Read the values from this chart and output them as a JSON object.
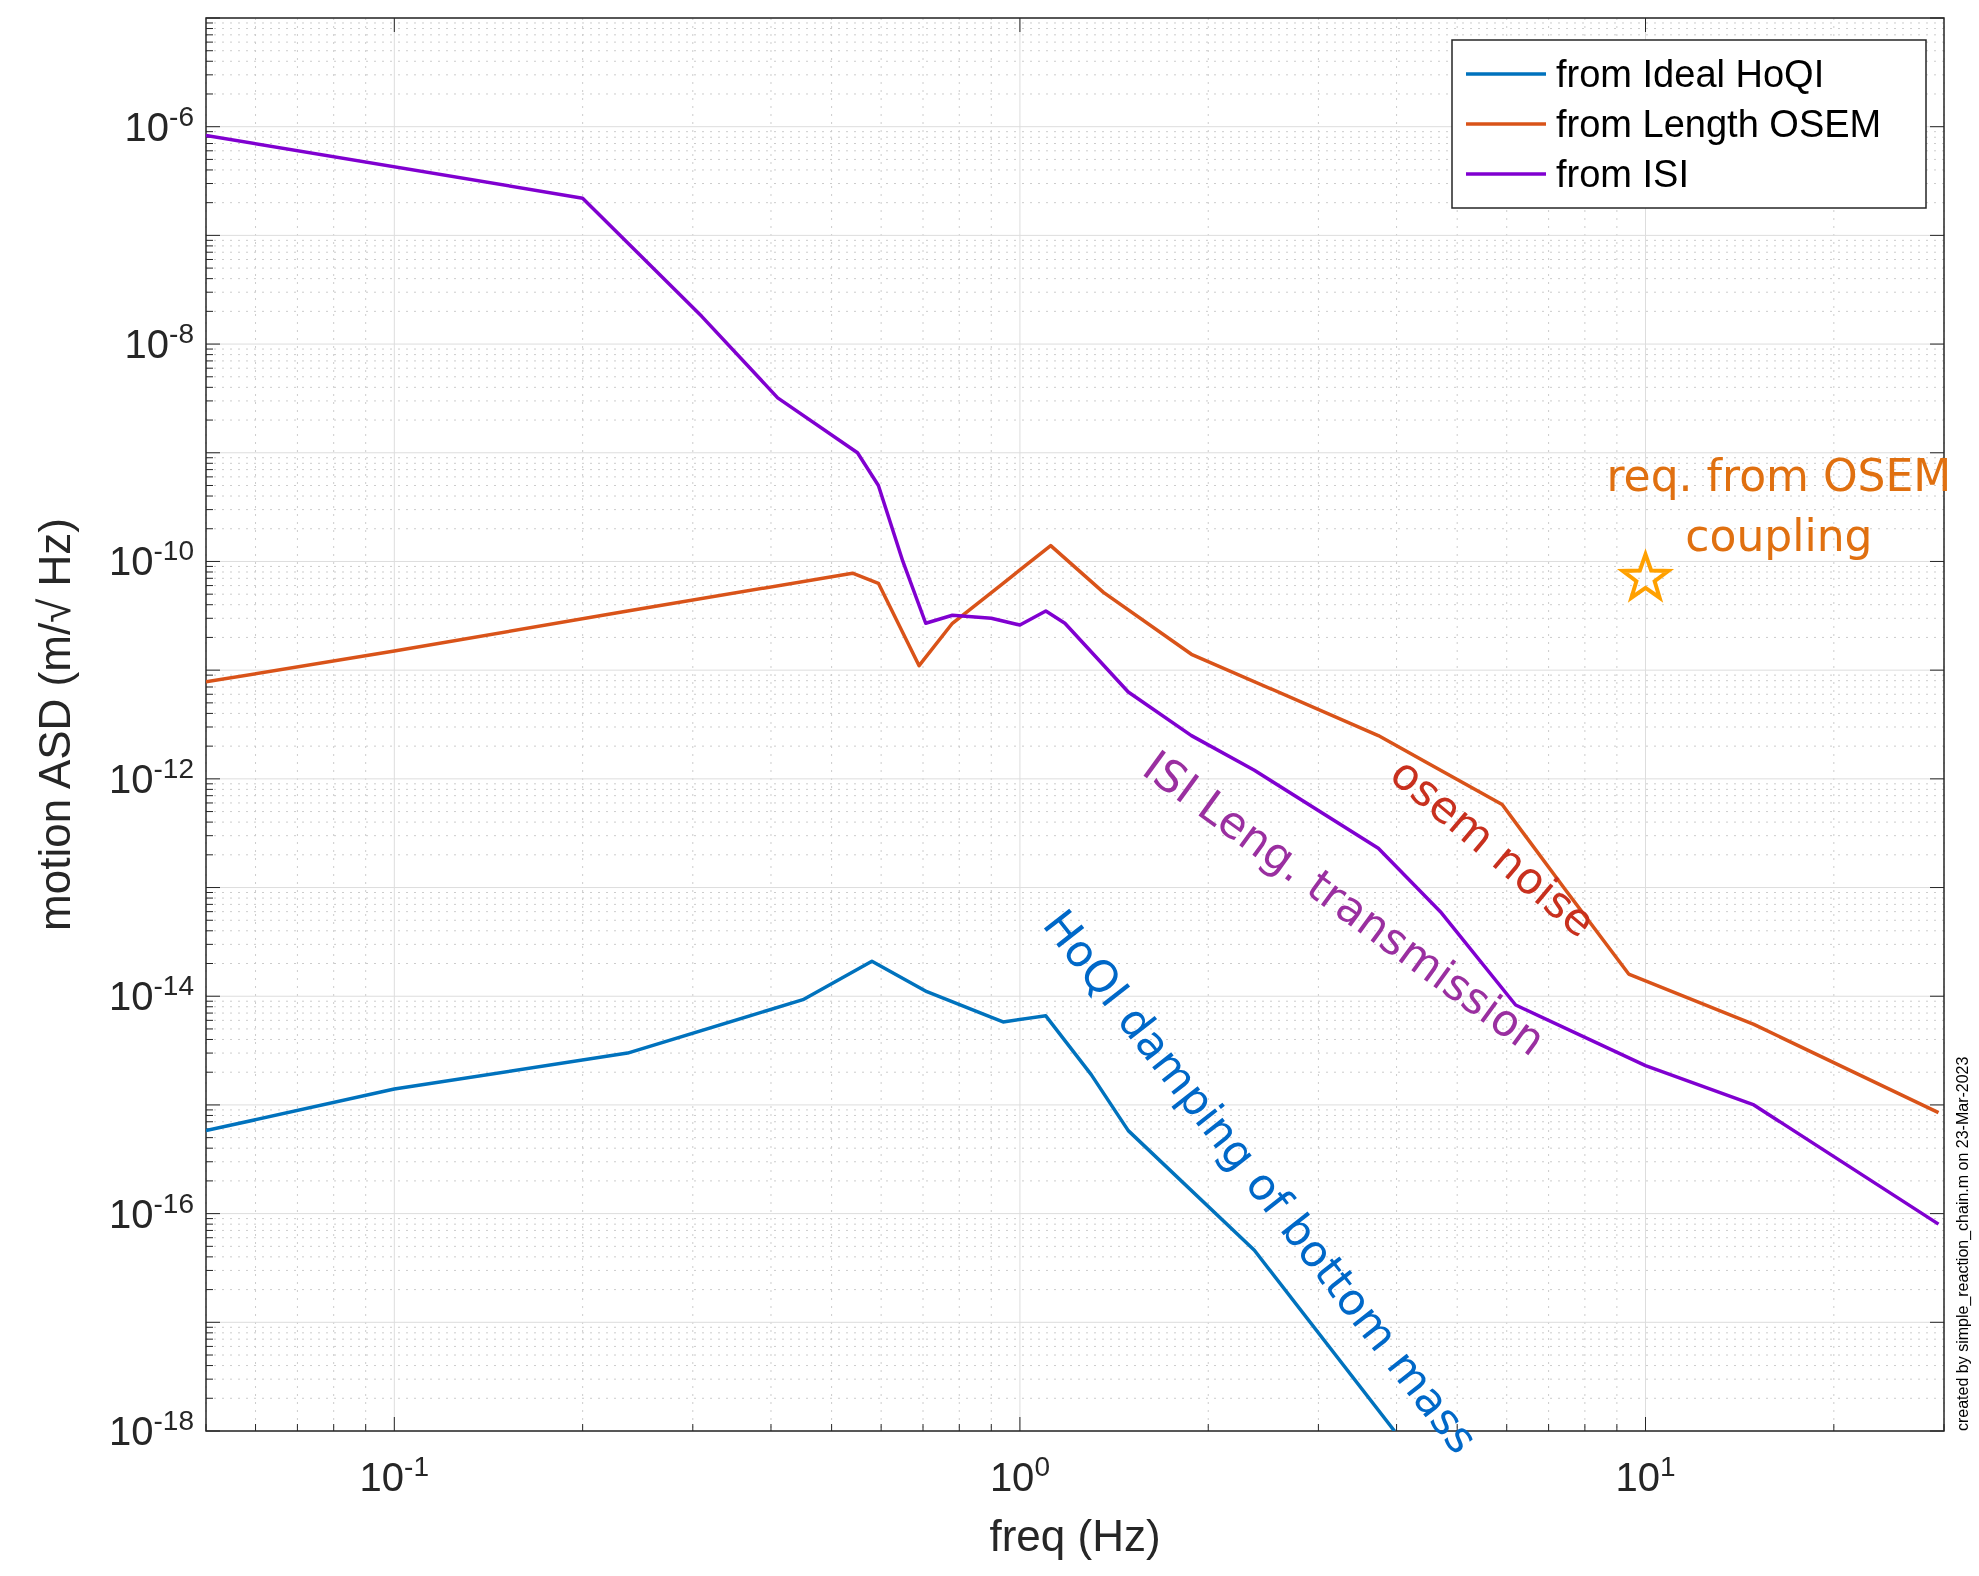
{
  "chart_data": {
    "type": "line",
    "xlabel": "freq (Hz)",
    "ylabel": "motion ASD (m/√ Hz)",
    "log": "xy",
    "grid": true,
    "legend": "top right",
    "line_style": "solid",
    "marker": "none",
    "xlim": [
      0.05,
      30
    ],
    "xticks": [
      {
        "value": 0.1,
        "label": "10$^{-1}$"
      },
      {
        "value": 1,
        "label": "10$^{0}$"
      },
      {
        "value": 10,
        "label": "10$^{1}$"
      }
    ],
    "ylim": [
      1e-18,
      1e-05
    ],
    "yticks": [
      {
        "value": 1e-18,
        "label": "10$^{-18}$"
      },
      {
        "value": 1e-17,
        "label": null
      },
      {
        "value": 1e-16,
        "label": "10$^{-16}$"
      },
      {
        "value": 1e-15,
        "label": null
      },
      {
        "value": 1e-14,
        "label": "10$^{-14}$"
      },
      {
        "value": 1e-13,
        "label": null
      },
      {
        "value": 1e-12,
        "label": "10$^{-12}$"
      },
      {
        "value": 1e-11,
        "label": null
      },
      {
        "value": 1e-10,
        "label": "10$^{-10}$"
      },
      {
        "value": 1e-09,
        "label": null
      },
      {
        "value": 1e-08,
        "label": "10$^{-8}$"
      },
      {
        "value": 1e-07,
        "label": null
      },
      {
        "value": 1e-06,
        "label": "10$^{-6}$"
      },
      {
        "value": 1e-05,
        "label": null
      }
    ],
    "series": [
      {
        "name": "from Ideal HoQI",
        "color": "#0072bd",
        "x": [
          0.05,
          0.1,
          0.236,
          0.45,
          0.58,
          0.71,
          0.94,
          1.1,
          1.3,
          1.49,
          2.37,
          3.97
        ],
        "values": [
          5.8e-16,
          1.4e-15,
          3e-15,
          9.3e-15,
          2.1e-14,
          1.1e-14,
          5.8e-15,
          6.6e-15,
          1.9e-15,
          5.8e-16,
          4.6e-17,
          1e-18
        ]
      },
      {
        "name": "from Length OSEM",
        "color": "#d95319",
        "x": [
          0.05,
          0.1,
          0.236,
          0.54,
          0.594,
          0.69,
          0.78,
          0.94,
          1.12,
          1.36,
          1.88,
          3.74,
          5.9,
          7.4,
          9.4,
          14.9,
          29.4
        ],
        "values": [
          7.8e-12,
          1.5e-11,
          3.5e-11,
          7.8e-11,
          6.3e-11,
          1.1e-11,
          2.7e-11,
          6.3e-11,
          1.4e-10,
          5.2e-11,
          1.4e-11,
          2.5e-12,
          5.8e-13,
          1e-13,
          1.6e-14,
          5.5e-15,
          8.5e-16
        ]
      },
      {
        "name": "from ISI",
        "color": "#8000d0",
        "x": [
          0.05,
          0.2,
          0.31,
          0.41,
          0.55,
          0.594,
          0.65,
          0.707,
          0.78,
          0.9,
          1.0,
          1.1,
          1.18,
          1.49,
          1.88,
          2.37,
          3.74,
          4.7,
          6.2,
          10,
          14.9,
          29.4
        ],
        "values": [
          8.3e-07,
          2.2e-07,
          1.8e-08,
          3.2e-09,
          1e-09,
          5e-10,
          1e-10,
          2.7e-11,
          3.2e-11,
          3e-11,
          2.6e-11,
          3.5e-11,
          2.7e-11,
          6.3e-12,
          2.5e-12,
          1.2e-12,
          2.3e-13,
          6e-14,
          8.3e-15,
          2.3e-15,
          1e-15,
          8e-17
        ]
      },
      {
        "type": "scatter",
        "marker": "star",
        "color": "#ffa000",
        "x": [
          10
        ],
        "values": [
          7e-11
        ]
      }
    ],
    "annotations": [
      "req. from OSEM coupling",
      "osem noise",
      "ISI Leng. transmission",
      "HoQI damping of bottom mass",
      "created by simple_reaction_chain.m on 23-Mar-2023"
    ]
  }
}
